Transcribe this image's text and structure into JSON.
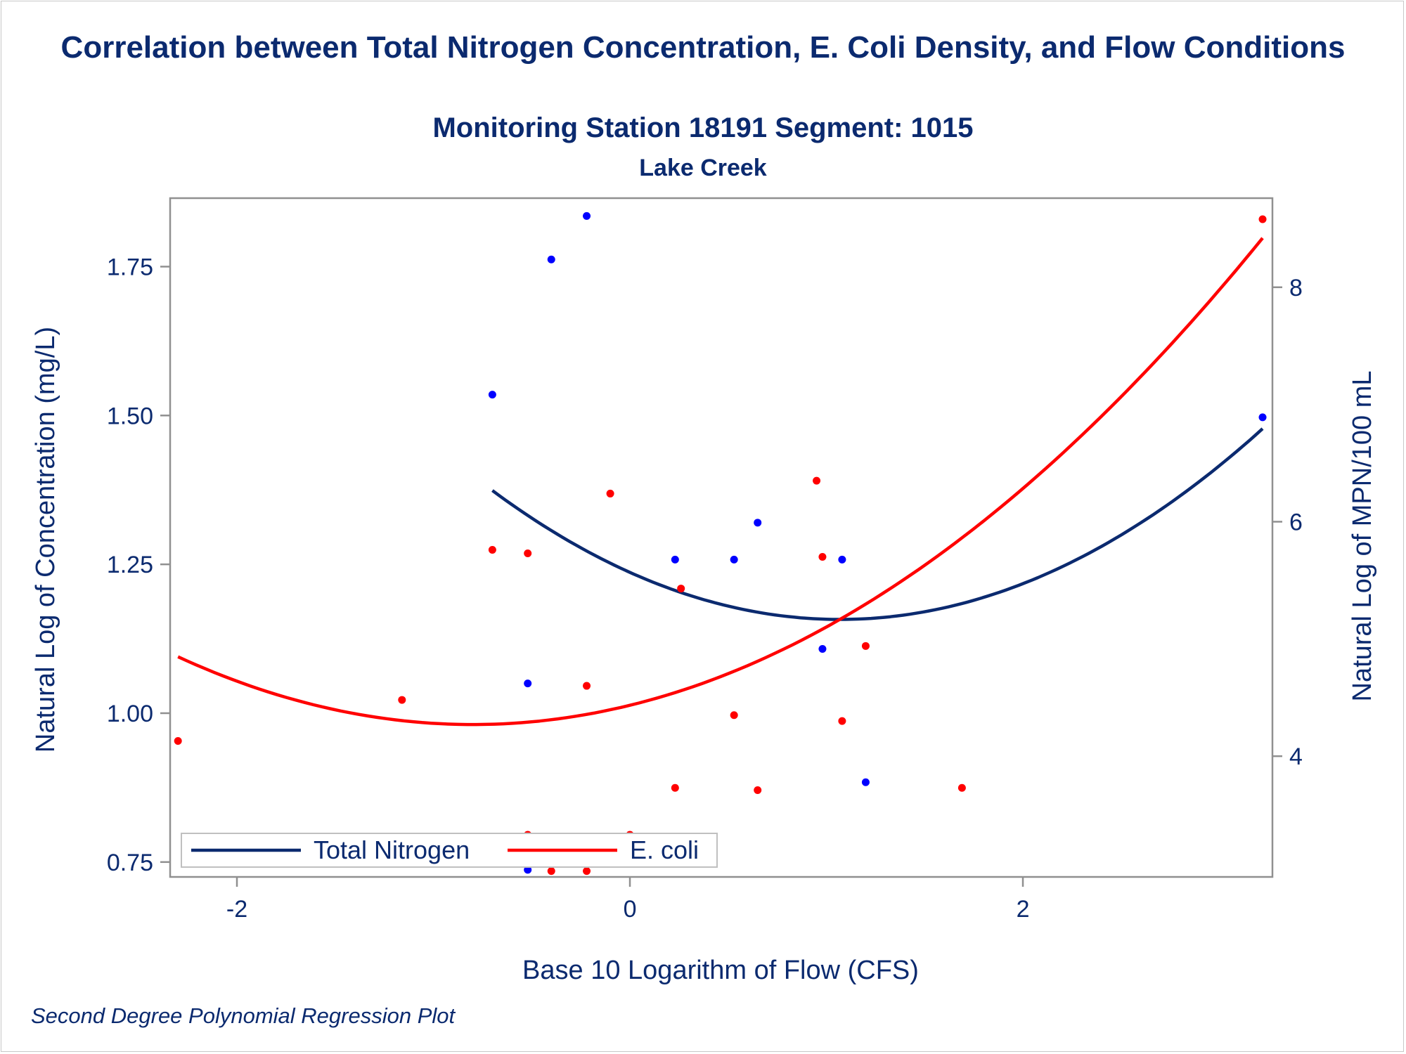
{
  "chart_data": {
    "type": "scatter",
    "title": "Correlation between Total Nitrogen Concentration, E. Coli Density, and Flow Conditions",
    "subtitle": "Monitoring Station 18191 Segment: 1015",
    "subtitle2": "Lake Creek",
    "footnote": "Second Degree Polynomial Regression Plot",
    "xlabel": "Base 10 Logarithm of Flow (CFS)",
    "ylabel_left": "Natural Log of Concentration (mg/L)",
    "ylabel_right": "Natural Log of MPN/100 mL",
    "xlim": [
      -2.34,
      3.27
    ],
    "ylim_left": [
      0.725,
      1.865
    ],
    "ylim_right": [
      2.97,
      8.76
    ],
    "x_ticks": [
      -2,
      0,
      2
    ],
    "x_tick_labels": [
      "-2",
      "0",
      "2"
    ],
    "y_left_ticks": [
      0.75,
      1.0,
      1.25,
      1.5,
      1.75
    ],
    "y_left_tick_labels": [
      "0.75",
      "1.00",
      "1.25",
      "1.50",
      "1.75"
    ],
    "y_right_ticks": [
      4,
      6,
      8
    ],
    "y_right_tick_labels": [
      "4",
      "6",
      "8"
    ],
    "grid": false,
    "legend_position": "bottom-left",
    "series": [
      {
        "name": "Total Nitrogen",
        "color": "#0b2a6f",
        "marker_color": "#0000ff",
        "axis": "left",
        "points": [
          [
            -0.7,
            1.535
          ],
          [
            -0.4,
            1.762
          ],
          [
            -0.22,
            1.835
          ],
          [
            -0.52,
            1.05
          ],
          [
            -0.52,
            0.737
          ],
          [
            0.0,
            0.79
          ],
          [
            0.23,
            1.258
          ],
          [
            0.53,
            1.258
          ],
          [
            0.65,
            1.32
          ],
          [
            0.98,
            1.108
          ],
          [
            1.08,
            1.258
          ],
          [
            1.2,
            0.884
          ],
          [
            3.22,
            1.497
          ]
        ],
        "fit_range": [
          -0.7,
          3.22
        ],
        "fit_coefficients": [
          1.2365,
          -0.1479,
          0.0692
        ]
      },
      {
        "name": "E. coli",
        "color": "#ff0000",
        "marker_color": "#ff0000",
        "axis": "right",
        "points": [
          [
            -2.3,
            4.13
          ],
          [
            -1.16,
            4.48
          ],
          [
            -0.7,
            5.76
          ],
          [
            -0.52,
            5.73
          ],
          [
            -0.52,
            3.33
          ],
          [
            -0.4,
            3.02
          ],
          [
            -0.22,
            4.6
          ],
          [
            -0.22,
            3.02
          ],
          [
            -0.1,
            6.24
          ],
          [
            0.0,
            3.33
          ],
          [
            0.23,
            3.73
          ],
          [
            0.26,
            5.43
          ],
          [
            0.53,
            4.35
          ],
          [
            0.65,
            3.71
          ],
          [
            0.95,
            6.35
          ],
          [
            0.98,
            5.7
          ],
          [
            1.08,
            4.3
          ],
          [
            1.2,
            4.94
          ],
          [
            1.69,
            3.73
          ],
          [
            3.22,
            8.58
          ]
        ],
        "fit_range": [
          -2.3,
          3.22
        ],
        "fit_coefficients": [
          4.4343,
          0.4108,
          0.2568
        ]
      }
    ]
  }
}
